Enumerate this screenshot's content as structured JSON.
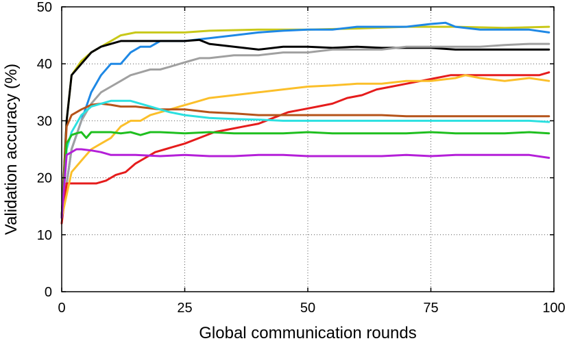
{
  "chart_data": {
    "type": "line",
    "title": "",
    "xlabel": "Global communication rounds",
    "ylabel": "Validation accuracy (%)",
    "xlim": [
      0,
      100
    ],
    "ylim": [
      0,
      50
    ],
    "xticks": [
      0,
      25,
      50,
      75,
      100
    ],
    "yticks": [
      0,
      10,
      20,
      30,
      40,
      50
    ],
    "grid": true,
    "legend": "none",
    "series": [
      {
        "color": "#c8c819",
        "points": [
          [
            0,
            13
          ],
          [
            1,
            30
          ],
          [
            2,
            38
          ],
          [
            4,
            40.5
          ],
          [
            6,
            42
          ],
          [
            8,
            43
          ],
          [
            10,
            44
          ],
          [
            12,
            45
          ],
          [
            15,
            45.5
          ],
          [
            20,
            45.5
          ],
          [
            25,
            45.5
          ],
          [
            30,
            45.8
          ],
          [
            40,
            46
          ],
          [
            50,
            46
          ],
          [
            60,
            46.2
          ],
          [
            70,
            46.5
          ],
          [
            80,
            46.5
          ],
          [
            90,
            46.3
          ],
          [
            99,
            46.5
          ]
        ]
      },
      {
        "color": "#1e88e5",
        "points": [
          [
            0,
            13
          ],
          [
            2,
            25
          ],
          [
            4,
            30
          ],
          [
            6,
            35
          ],
          [
            8,
            38
          ],
          [
            10,
            40
          ],
          [
            12,
            40
          ],
          [
            14,
            42
          ],
          [
            16,
            43
          ],
          [
            18,
            43
          ],
          [
            20,
            44
          ],
          [
            25,
            44
          ],
          [
            30,
            44.5
          ],
          [
            35,
            45
          ],
          [
            40,
            45.5
          ],
          [
            45,
            45.8
          ],
          [
            50,
            46
          ],
          [
            55,
            46
          ],
          [
            60,
            46.5
          ],
          [
            65,
            46.5
          ],
          [
            70,
            46.5
          ],
          [
            75,
            47
          ],
          [
            78,
            47.2
          ],
          [
            80,
            46.5
          ],
          [
            85,
            46
          ],
          [
            90,
            46
          ],
          [
            95,
            46
          ],
          [
            99,
            45.5
          ]
        ]
      },
      {
        "color": "#000000",
        "points": [
          [
            0,
            13
          ],
          [
            1,
            30
          ],
          [
            2,
            38
          ],
          [
            4,
            40
          ],
          [
            6,
            42
          ],
          [
            8,
            43
          ],
          [
            10,
            43.5
          ],
          [
            12,
            44
          ],
          [
            15,
            44
          ],
          [
            20,
            44
          ],
          [
            25,
            44
          ],
          [
            28,
            44.2
          ],
          [
            30,
            43.5
          ],
          [
            35,
            43
          ],
          [
            40,
            42.5
          ],
          [
            45,
            43
          ],
          [
            50,
            43
          ],
          [
            55,
            42.8
          ],
          [
            60,
            43
          ],
          [
            65,
            42.8
          ],
          [
            70,
            42.8
          ],
          [
            75,
            42.8
          ],
          [
            80,
            42.5
          ],
          [
            85,
            42.5
          ],
          [
            90,
            42.5
          ],
          [
            95,
            42.5
          ],
          [
            99,
            42.5
          ]
        ]
      },
      {
        "color": "#a0a0a0",
        "points": [
          [
            0,
            13
          ],
          [
            2,
            25
          ],
          [
            4,
            30
          ],
          [
            6,
            33
          ],
          [
            8,
            35
          ],
          [
            10,
            36
          ],
          [
            12,
            37
          ],
          [
            14,
            38
          ],
          [
            16,
            38.5
          ],
          [
            18,
            39
          ],
          [
            20,
            39
          ],
          [
            22,
            39.5
          ],
          [
            24,
            40
          ],
          [
            26,
            40.5
          ],
          [
            28,
            41
          ],
          [
            30,
            41
          ],
          [
            35,
            41.5
          ],
          [
            40,
            41.5
          ],
          [
            45,
            42
          ],
          [
            50,
            42
          ],
          [
            55,
            42.5
          ],
          [
            60,
            42.5
          ],
          [
            65,
            42.5
          ],
          [
            70,
            43
          ],
          [
            75,
            43
          ],
          [
            80,
            43
          ],
          [
            85,
            43
          ],
          [
            90,
            43.3
          ],
          [
            95,
            43.5
          ],
          [
            99,
            43.5
          ]
        ]
      },
      {
        "color": "#e51c1c",
        "points": [
          [
            0,
            12
          ],
          [
            1,
            19
          ],
          [
            3,
            19
          ],
          [
            5,
            19
          ],
          [
            7,
            19
          ],
          [
            9,
            19.5
          ],
          [
            11,
            20.5
          ],
          [
            13,
            21
          ],
          [
            15,
            22.5
          ],
          [
            17,
            23.5
          ],
          [
            19,
            24.5
          ],
          [
            21,
            25
          ],
          [
            23,
            25.5
          ],
          [
            25,
            26
          ],
          [
            28,
            27
          ],
          [
            31,
            28
          ],
          [
            34,
            28.5
          ],
          [
            37,
            29
          ],
          [
            40,
            29.5
          ],
          [
            43,
            30.5
          ],
          [
            46,
            31.5
          ],
          [
            49,
            32
          ],
          [
            52,
            32.5
          ],
          [
            55,
            33
          ],
          [
            58,
            34
          ],
          [
            61,
            34.5
          ],
          [
            64,
            35.5
          ],
          [
            67,
            36
          ],
          [
            70,
            36.5
          ],
          [
            73,
            37
          ],
          [
            76,
            37.5
          ],
          [
            79,
            38
          ],
          [
            82,
            38
          ],
          [
            85,
            38
          ],
          [
            88,
            38
          ],
          [
            91,
            38
          ],
          [
            94,
            38
          ],
          [
            97,
            38
          ],
          [
            99,
            38.5
          ]
        ]
      },
      {
        "color": "#fbbf2a",
        "points": [
          [
            0,
            13
          ],
          [
            2,
            21
          ],
          [
            4,
            23
          ],
          [
            6,
            25
          ],
          [
            8,
            26
          ],
          [
            10,
            27
          ],
          [
            12,
            29
          ],
          [
            14,
            30
          ],
          [
            16,
            30
          ],
          [
            18,
            31
          ],
          [
            20,
            31.5
          ],
          [
            22,
            32
          ],
          [
            24,
            32.5
          ],
          [
            26,
            33
          ],
          [
            28,
            33.5
          ],
          [
            30,
            34
          ],
          [
            35,
            34.5
          ],
          [
            40,
            35
          ],
          [
            45,
            35.5
          ],
          [
            50,
            36
          ],
          [
            55,
            36.2
          ],
          [
            60,
            36.5
          ],
          [
            65,
            36.5
          ],
          [
            70,
            37
          ],
          [
            75,
            37
          ],
          [
            80,
            37.5
          ],
          [
            82,
            38
          ],
          [
            85,
            37.5
          ],
          [
            90,
            37
          ],
          [
            95,
            37.5
          ],
          [
            99,
            37
          ]
        ]
      },
      {
        "color": "#b5541a",
        "points": [
          [
            0,
            13
          ],
          [
            1,
            29
          ],
          [
            2,
            31
          ],
          [
            4,
            32
          ],
          [
            6,
            32.8
          ],
          [
            8,
            33
          ],
          [
            10,
            32.8
          ],
          [
            12,
            32.5
          ],
          [
            15,
            32.5
          ],
          [
            20,
            32
          ],
          [
            25,
            32
          ],
          [
            30,
            31.5
          ],
          [
            35,
            31.3
          ],
          [
            40,
            31
          ],
          [
            45,
            31
          ],
          [
            50,
            31
          ],
          [
            55,
            31
          ],
          [
            60,
            31
          ],
          [
            65,
            31
          ],
          [
            70,
            30.8
          ],
          [
            75,
            30.8
          ],
          [
            80,
            30.8
          ],
          [
            85,
            30.8
          ],
          [
            90,
            30.8
          ],
          [
            95,
            30.8
          ],
          [
            99,
            30.8
          ]
        ]
      },
      {
        "color": "#2ce0e0",
        "points": [
          [
            0,
            13
          ],
          [
            1,
            25
          ],
          [
            2,
            28
          ],
          [
            4,
            31
          ],
          [
            6,
            32.5
          ],
          [
            8,
            33
          ],
          [
            10,
            33.5
          ],
          [
            12,
            33.5
          ],
          [
            14,
            33.5
          ],
          [
            16,
            33
          ],
          [
            18,
            32.5
          ],
          [
            20,
            32
          ],
          [
            22,
            31.5
          ],
          [
            25,
            31
          ],
          [
            30,
            30.5
          ],
          [
            35,
            30.3
          ],
          [
            40,
            30.2
          ],
          [
            45,
            30
          ],
          [
            50,
            30
          ],
          [
            55,
            30
          ],
          [
            60,
            30
          ],
          [
            65,
            30
          ],
          [
            70,
            30
          ],
          [
            75,
            30
          ],
          [
            80,
            30
          ],
          [
            85,
            30
          ],
          [
            90,
            30
          ],
          [
            95,
            30
          ],
          [
            99,
            29.8
          ]
        ]
      },
      {
        "color": "#1fbf1f",
        "points": [
          [
            0,
            13
          ],
          [
            1,
            26
          ],
          [
            2,
            27.5
          ],
          [
            3,
            27.8
          ],
          [
            4,
            28
          ],
          [
            5,
            27
          ],
          [
            6,
            28
          ],
          [
            8,
            28
          ],
          [
            10,
            28
          ],
          [
            12,
            27.8
          ],
          [
            14,
            28
          ],
          [
            16,
            27.5
          ],
          [
            18,
            28
          ],
          [
            20,
            28
          ],
          [
            25,
            27.8
          ],
          [
            30,
            28
          ],
          [
            35,
            27.8
          ],
          [
            40,
            27.8
          ],
          [
            45,
            27.8
          ],
          [
            50,
            28
          ],
          [
            55,
            27.8
          ],
          [
            60,
            27.8
          ],
          [
            65,
            27.8
          ],
          [
            70,
            27.8
          ],
          [
            75,
            28
          ],
          [
            80,
            27.8
          ],
          [
            85,
            27.8
          ],
          [
            90,
            27.8
          ],
          [
            95,
            28
          ],
          [
            99,
            27.8
          ]
        ]
      },
      {
        "color": "#b41fd8",
        "points": [
          [
            0,
            13
          ],
          [
            1,
            24
          ],
          [
            2,
            24.5
          ],
          [
            3,
            25
          ],
          [
            4,
            25
          ],
          [
            6,
            24.8
          ],
          [
            8,
            24.5
          ],
          [
            10,
            24
          ],
          [
            12,
            24
          ],
          [
            15,
            24
          ],
          [
            20,
            23.8
          ],
          [
            25,
            24
          ],
          [
            30,
            23.8
          ],
          [
            35,
            23.8
          ],
          [
            40,
            24
          ],
          [
            45,
            24
          ],
          [
            50,
            23.8
          ],
          [
            55,
            23.8
          ],
          [
            60,
            23.8
          ],
          [
            65,
            23.8
          ],
          [
            70,
            24
          ],
          [
            75,
            23.8
          ],
          [
            80,
            24
          ],
          [
            85,
            24
          ],
          [
            90,
            24
          ],
          [
            95,
            24
          ],
          [
            99,
            23.5
          ]
        ]
      }
    ]
  }
}
